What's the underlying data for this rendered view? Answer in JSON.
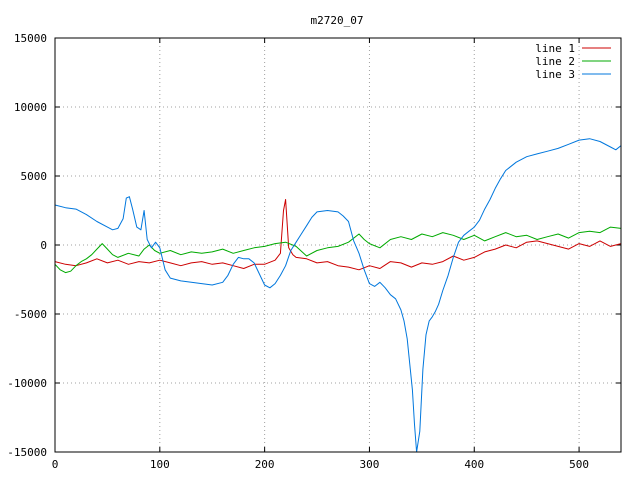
{
  "chart_data": {
    "type": "line",
    "title": "m2720_07",
    "xlabel": "",
    "ylabel": "",
    "xlim": [
      0,
      540
    ],
    "ylim": [
      -15000,
      15000
    ],
    "x_ticks": [
      0,
      100,
      200,
      300,
      400,
      500
    ],
    "y_ticks": [
      -15000,
      -10000,
      -5000,
      0,
      5000,
      10000,
      15000
    ],
    "x_tick_labels": [
      "0",
      "100",
      "200",
      "300",
      "400",
      "500"
    ],
    "y_tick_labels": [
      "-15000",
      "-10000",
      "-5000",
      "0",
      "5000",
      "10000",
      "15000"
    ],
    "grid": true,
    "legend_position": "top-right",
    "series": [
      {
        "name": "line 1",
        "color": "#cc0000",
        "points": [
          [
            0,
            -1200
          ],
          [
            10,
            -1400
          ],
          [
            20,
            -1500
          ],
          [
            30,
            -1300
          ],
          [
            40,
            -1000
          ],
          [
            50,
            -1300
          ],
          [
            60,
            -1100
          ],
          [
            70,
            -1400
          ],
          [
            80,
            -1200
          ],
          [
            90,
            -1300
          ],
          [
            100,
            -1100
          ],
          [
            110,
            -1300
          ],
          [
            120,
            -1500
          ],
          [
            130,
            -1300
          ],
          [
            140,
            -1200
          ],
          [
            150,
            -1400
          ],
          [
            160,
            -1300
          ],
          [
            170,
            -1500
          ],
          [
            180,
            -1700
          ],
          [
            190,
            -1400
          ],
          [
            200,
            -1400
          ],
          [
            210,
            -1100
          ],
          [
            215,
            -600
          ],
          [
            218,
            2500
          ],
          [
            220,
            3300
          ],
          [
            223,
            -200
          ],
          [
            227,
            -700
          ],
          [
            230,
            -900
          ],
          [
            240,
            -1000
          ],
          [
            250,
            -1300
          ],
          [
            260,
            -1200
          ],
          [
            270,
            -1500
          ],
          [
            280,
            -1600
          ],
          [
            290,
            -1800
          ],
          [
            300,
            -1500
          ],
          [
            310,
            -1700
          ],
          [
            320,
            -1200
          ],
          [
            330,
            -1300
          ],
          [
            340,
            -1600
          ],
          [
            350,
            -1300
          ],
          [
            360,
            -1400
          ],
          [
            370,
            -1200
          ],
          [
            380,
            -800
          ],
          [
            390,
            -1100
          ],
          [
            400,
            -900
          ],
          [
            410,
            -500
          ],
          [
            420,
            -300
          ],
          [
            430,
            0
          ],
          [
            440,
            -200
          ],
          [
            450,
            200
          ],
          [
            460,
            300
          ],
          [
            470,
            100
          ],
          [
            480,
            -100
          ],
          [
            490,
            -300
          ],
          [
            500,
            100
          ],
          [
            510,
            -100
          ],
          [
            520,
            300
          ],
          [
            530,
            -100
          ],
          [
            540,
            100
          ]
        ]
      },
      {
        "name": "line 2",
        "color": "#00aa00",
        "points": [
          [
            0,
            -1400
          ],
          [
            5,
            -1800
          ],
          [
            10,
            -2000
          ],
          [
            15,
            -1900
          ],
          [
            20,
            -1500
          ],
          [
            25,
            -1200
          ],
          [
            30,
            -1000
          ],
          [
            35,
            -700
          ],
          [
            40,
            -300
          ],
          [
            45,
            100
          ],
          [
            50,
            -300
          ],
          [
            55,
            -700
          ],
          [
            60,
            -900
          ],
          [
            70,
            -600
          ],
          [
            80,
            -800
          ],
          [
            85,
            -300
          ],
          [
            90,
            0
          ],
          [
            95,
            -400
          ],
          [
            100,
            -600
          ],
          [
            110,
            -400
          ],
          [
            120,
            -700
          ],
          [
            130,
            -500
          ],
          [
            140,
            -600
          ],
          [
            150,
            -500
          ],
          [
            160,
            -300
          ],
          [
            170,
            -600
          ],
          [
            180,
            -400
          ],
          [
            190,
            -200
          ],
          [
            200,
            -100
          ],
          [
            210,
            100
          ],
          [
            220,
            200
          ],
          [
            230,
            -100
          ],
          [
            240,
            -800
          ],
          [
            250,
            -400
          ],
          [
            260,
            -200
          ],
          [
            270,
            -100
          ],
          [
            280,
            200
          ],
          [
            290,
            800
          ],
          [
            295,
            400
          ],
          [
            300,
            100
          ],
          [
            310,
            -200
          ],
          [
            320,
            400
          ],
          [
            330,
            600
          ],
          [
            340,
            400
          ],
          [
            350,
            800
          ],
          [
            360,
            600
          ],
          [
            370,
            900
          ],
          [
            380,
            700
          ],
          [
            390,
            400
          ],
          [
            400,
            700
          ],
          [
            410,
            300
          ],
          [
            420,
            600
          ],
          [
            430,
            900
          ],
          [
            440,
            600
          ],
          [
            450,
            700
          ],
          [
            460,
            400
          ],
          [
            470,
            600
          ],
          [
            480,
            800
          ],
          [
            490,
            500
          ],
          [
            500,
            900
          ],
          [
            510,
            1000
          ],
          [
            520,
            900
          ],
          [
            530,
            1300
          ],
          [
            540,
            1200
          ]
        ]
      },
      {
        "name": "line 3",
        "color": "#0077dd",
        "points": [
          [
            0,
            2900
          ],
          [
            10,
            2700
          ],
          [
            20,
            2600
          ],
          [
            30,
            2200
          ],
          [
            40,
            1700
          ],
          [
            50,
            1300
          ],
          [
            55,
            1100
          ],
          [
            60,
            1200
          ],
          [
            65,
            1900
          ],
          [
            68,
            3400
          ],
          [
            71,
            3500
          ],
          [
            74,
            2600
          ],
          [
            78,
            1300
          ],
          [
            82,
            1100
          ],
          [
            85,
            2500
          ],
          [
            88,
            400
          ],
          [
            92,
            -200
          ],
          [
            96,
            200
          ],
          [
            100,
            -200
          ],
          [
            105,
            -1800
          ],
          [
            110,
            -2400
          ],
          [
            120,
            -2600
          ],
          [
            130,
            -2700
          ],
          [
            140,
            -2800
          ],
          [
            150,
            -2900
          ],
          [
            160,
            -2700
          ],
          [
            165,
            -2200
          ],
          [
            170,
            -1400
          ],
          [
            175,
            -900
          ],
          [
            180,
            -1000
          ],
          [
            185,
            -1000
          ],
          [
            190,
            -1300
          ],
          [
            195,
            -2100
          ],
          [
            200,
            -2900
          ],
          [
            205,
            -3100
          ],
          [
            210,
            -2800
          ],
          [
            215,
            -2200
          ],
          [
            220,
            -1500
          ],
          [
            225,
            -400
          ],
          [
            230,
            200
          ],
          [
            235,
            800
          ],
          [
            240,
            1400
          ],
          [
            245,
            2000
          ],
          [
            250,
            2400
          ],
          [
            260,
            2500
          ],
          [
            270,
            2400
          ],
          [
            275,
            2100
          ],
          [
            280,
            1700
          ],
          [
            285,
            300
          ],
          [
            290,
            -600
          ],
          [
            295,
            -1800
          ],
          [
            300,
            -2800
          ],
          [
            305,
            -3000
          ],
          [
            310,
            -2700
          ],
          [
            315,
            -3100
          ],
          [
            320,
            -3600
          ],
          [
            325,
            -3900
          ],
          [
            330,
            -4700
          ],
          [
            333,
            -5500
          ],
          [
            336,
            -6800
          ],
          [
            339,
            -9000
          ],
          [
            341,
            -10500
          ],
          [
            343,
            -13000
          ],
          [
            345,
            -15000
          ],
          [
            348,
            -13500
          ],
          [
            351,
            -9000
          ],
          [
            354,
            -6500
          ],
          [
            357,
            -5500
          ],
          [
            360,
            -5200
          ],
          [
            363,
            -4800
          ],
          [
            366,
            -4300
          ],
          [
            370,
            -3300
          ],
          [
            375,
            -2200
          ],
          [
            380,
            -900
          ],
          [
            385,
            200
          ],
          [
            390,
            700
          ],
          [
            395,
            1000
          ],
          [
            400,
            1300
          ],
          [
            405,
            1800
          ],
          [
            410,
            2600
          ],
          [
            415,
            3300
          ],
          [
            420,
            4100
          ],
          [
            425,
            4800
          ],
          [
            430,
            5400
          ],
          [
            440,
            6000
          ],
          [
            450,
            6400
          ],
          [
            460,
            6600
          ],
          [
            470,
            6800
          ],
          [
            480,
            7000
          ],
          [
            490,
            7300
          ],
          [
            500,
            7600
          ],
          [
            510,
            7700
          ],
          [
            520,
            7500
          ],
          [
            530,
            7100
          ],
          [
            535,
            6900
          ],
          [
            540,
            7200
          ]
        ]
      }
    ]
  }
}
